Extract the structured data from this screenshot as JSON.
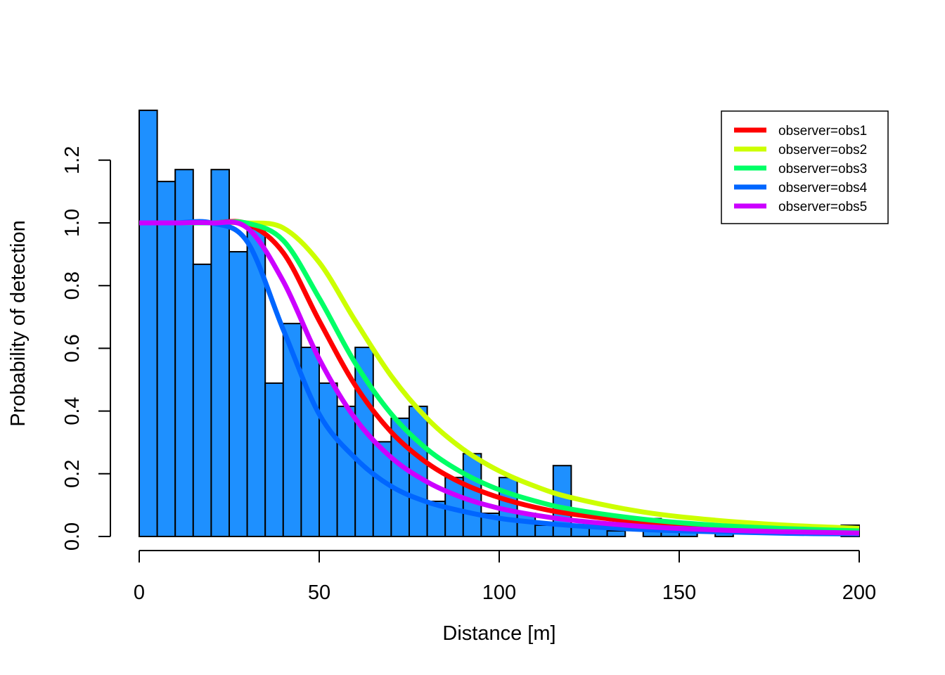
{
  "chart_data": {
    "type": "bar",
    "title": "",
    "xlabel": "Distance [m]",
    "ylabel": "Probability of detection",
    "xlim": [
      0,
      200
    ],
    "ylim": [
      0,
      1.2
    ],
    "xticks": [
      "0",
      "50",
      "100",
      "150",
      "200"
    ],
    "yticks": [
      "0.0",
      "0.2",
      "0.4",
      "0.6",
      "0.8",
      "1.0",
      "1.2"
    ],
    "grid": false,
    "legend_position": "top-right",
    "histogram": {
      "bin_width": 5,
      "bin_start": 0,
      "color": "#1E90FF",
      "values": [
        1.359,
        1.132,
        1.17,
        0.868,
        1.17,
        0.908,
        0.982,
        0.489,
        0.679,
        0.603,
        0.489,
        0.415,
        0.603,
        0.302,
        0.377,
        0.415,
        0.112,
        0.188,
        0.264,
        0.074,
        0.188,
        0.074,
        0.036,
        0.226,
        0.036,
        0.036,
        0.018,
        0,
        0.057,
        0.018,
        0.018,
        0,
        0.018,
        0,
        0,
        0,
        0,
        0,
        0,
        0.036
      ]
    },
    "x": [
      0,
      10,
      20,
      30,
      40,
      50,
      60,
      70,
      80,
      90,
      100,
      110,
      120,
      140,
      160,
      180,
      200
    ],
    "series": [
      {
        "name": "observer=obs1",
        "color": "#FF0000",
        "values": [
          1,
          1,
          1,
          0.997,
          0.905,
          0.688,
          0.482,
          0.333,
          0.234,
          0.168,
          0.124,
          0.093,
          0.072,
          0.045,
          0.03,
          0.021,
          0.015
        ]
      },
      {
        "name": "observer=obs2",
        "color": "#CCFF00",
        "values": [
          1,
          1,
          1,
          1,
          0.984,
          0.874,
          0.688,
          0.512,
          0.376,
          0.278,
          0.209,
          0.16,
          0.124,
          0.078,
          0.052,
          0.036,
          0.026
        ]
      },
      {
        "name": "observer=obs3",
        "color": "#00FF66",
        "values": [
          1,
          1,
          1,
          0.999,
          0.944,
          0.76,
          0.553,
          0.391,
          0.278,
          0.202,
          0.149,
          0.113,
          0.087,
          0.055,
          0.036,
          0.025,
          0.018
        ]
      },
      {
        "name": "observer=obs4",
        "color": "#0066FF",
        "values": [
          1,
          1,
          1,
          0.94,
          0.66,
          0.39,
          0.25,
          0.16,
          0.11,
          0.08,
          0.058,
          0.045,
          0.035,
          0.022,
          0.015,
          0.01,
          0.008
        ]
      },
      {
        "name": "observer=obs5",
        "color": "#CC00FF",
        "values": [
          1,
          1,
          1,
          0.984,
          0.814,
          0.566,
          0.376,
          0.252,
          0.174,
          0.123,
          0.09,
          0.068,
          0.052,
          0.032,
          0.021,
          0.015,
          0.011
        ]
      }
    ]
  }
}
